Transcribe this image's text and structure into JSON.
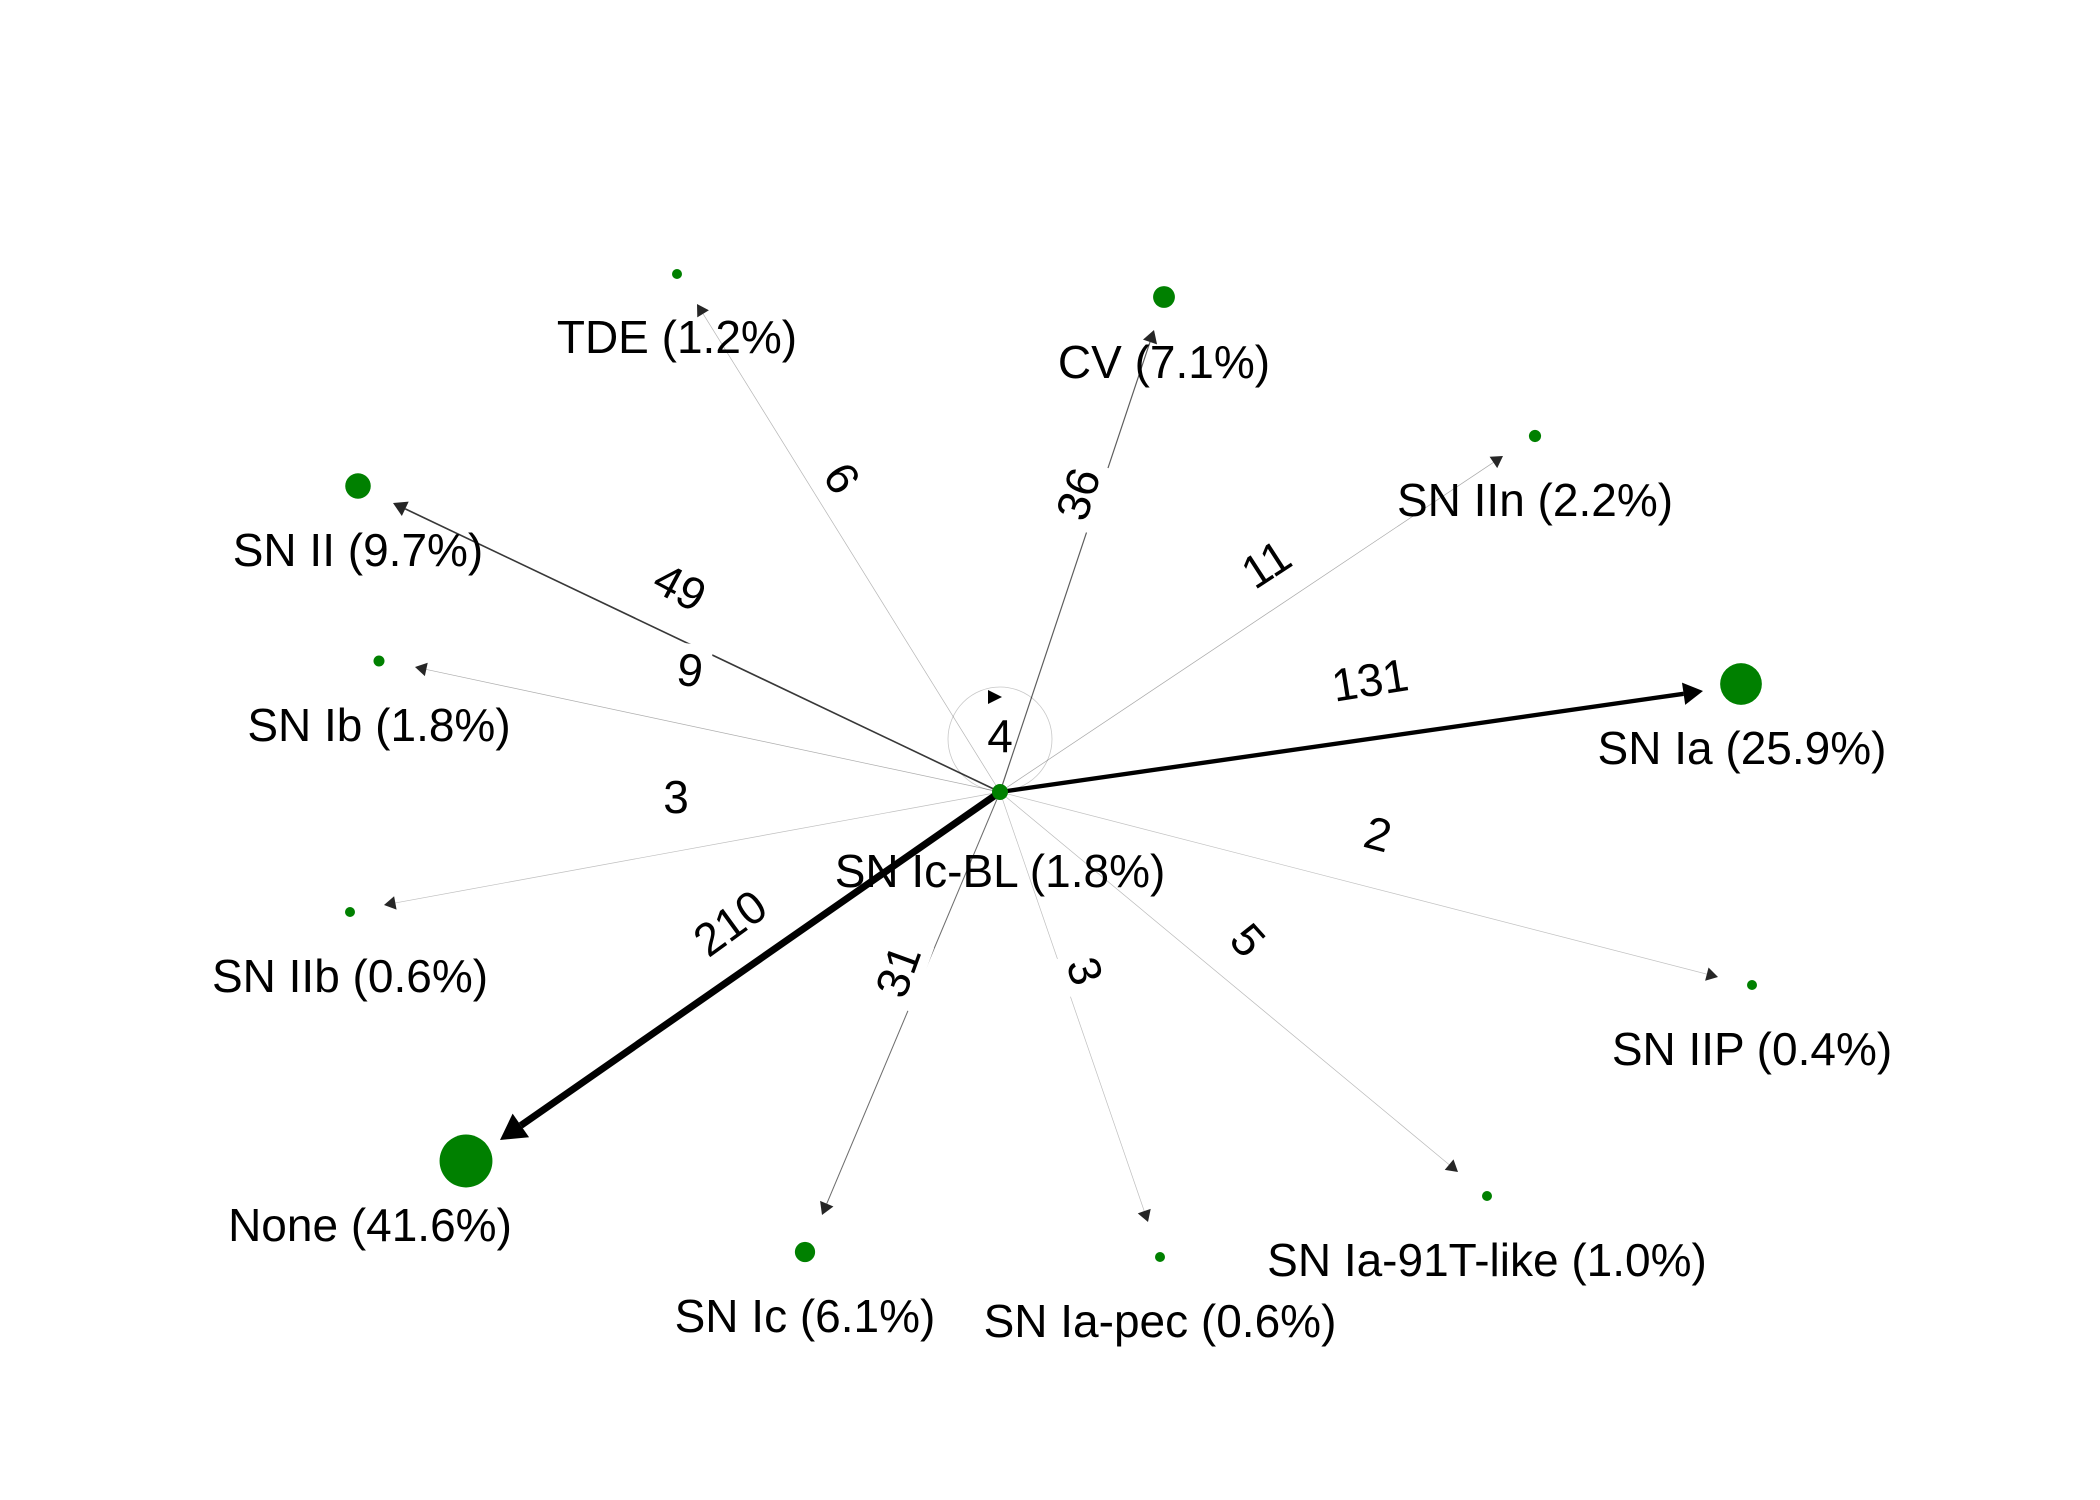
{
  "diagram": {
    "node_color": "#008000",
    "edge_color": "#000000",
    "source": {
      "id": "sn_ic_bl",
      "label": "SN Ic-BL (1.8%)",
      "self_loop_count": "4"
    },
    "targets": [
      {
        "id": "none",
        "label": "None (41.6%)",
        "count": "210",
        "share": 41.6
      },
      {
        "id": "sn_ia",
        "label": "SN Ia (25.9%)",
        "count": "131",
        "share": 25.9
      },
      {
        "id": "sn_ii",
        "label": "SN II (9.7%)",
        "count": "49",
        "share": 9.7
      },
      {
        "id": "cv",
        "label": "CV (7.1%)",
        "count": "36",
        "share": 7.1
      },
      {
        "id": "sn_ic",
        "label": "SN Ic (6.1%)",
        "count": "31",
        "share": 6.1
      },
      {
        "id": "sn_iin",
        "label": "SN IIn (2.2%)",
        "count": "11",
        "share": 2.2
      },
      {
        "id": "sn_ib",
        "label": "SN Ib (1.8%)",
        "count": "9",
        "share": 1.8
      },
      {
        "id": "tde",
        "label": "TDE (1.2%)",
        "count": "6",
        "share": 1.2
      },
      {
        "id": "sn_ia_91t",
        "label": "SN Ia-91T-like (1.0%)",
        "count": "5",
        "share": 1.0
      },
      {
        "id": "sn_iib",
        "label": "SN IIb (0.6%)",
        "count": "3",
        "share": 0.6
      },
      {
        "id": "sn_ia_pec",
        "label": "SN Ia-pec (0.6%)",
        "count": "3",
        "share": 0.6
      },
      {
        "id": "sn_iip",
        "label": "SN IIP (0.4%)",
        "count": "2",
        "share": 0.4
      }
    ]
  }
}
